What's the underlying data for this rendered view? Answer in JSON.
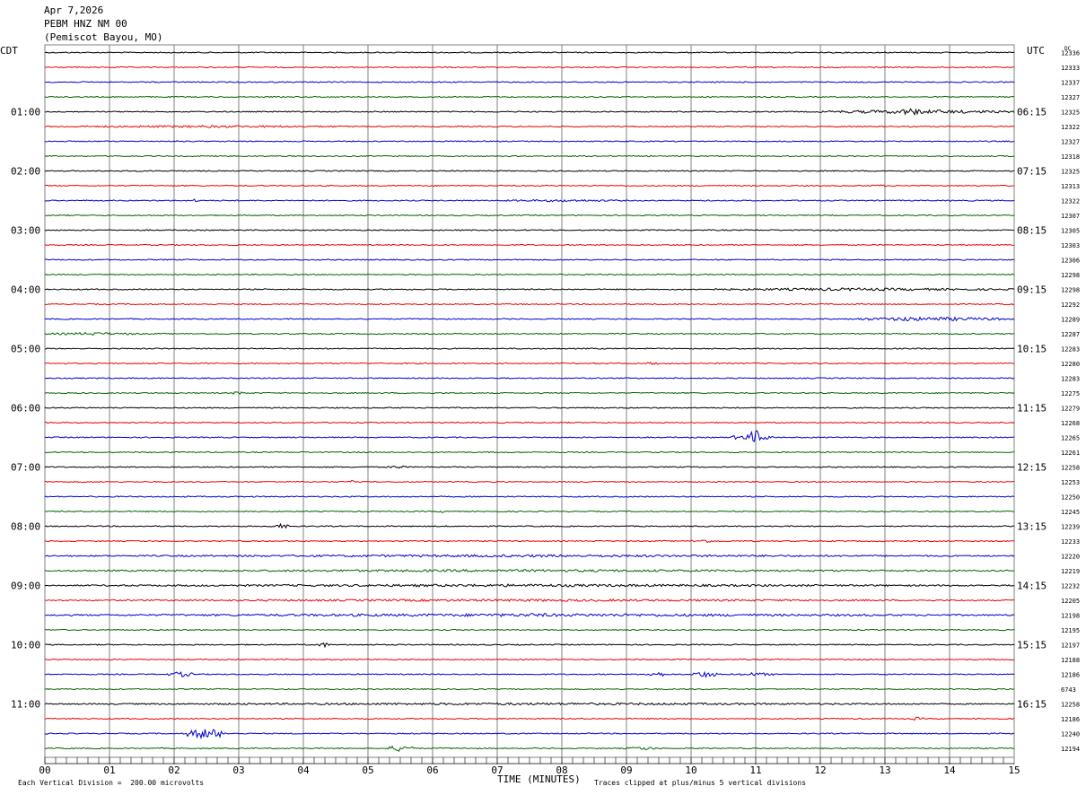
{
  "header": {
    "date": "Apr 7,2026",
    "station": "PEBM HNZ NM 00",
    "location": "(Pemiscot Bayou, MO)"
  },
  "left_axis_label": "CDT",
  "right_axis_label": "UTC",
  "dc_label": "DC",
  "footer": {
    "scale_note": "Each Vertical Division =  200.00 microvolts",
    "xlabel": "TIME (MINUTES)",
    "clip_note": "Traces clipped at plus/minus 5 vertical divisions"
  },
  "colors": {
    "trace_cycle": [
      "#000000",
      "#ee0000",
      "#0000cc",
      "#006600"
    ],
    "grid": "#808080"
  },
  "chart_data": {
    "type": "line",
    "title": "PEBM HNZ NM 00",
    "xlabel": "TIME (MINUTES)",
    "xlim": [
      0,
      15
    ],
    "x_ticks": [
      "00",
      "01",
      "02",
      "03",
      "04",
      "05",
      "06",
      "07",
      "08",
      "09",
      "10",
      "11",
      "12",
      "13",
      "14",
      "15"
    ],
    "left_hour_labels": [
      "01:00",
      "02:00",
      "03:00",
      "04:00",
      "05:00",
      "06:00",
      "07:00",
      "08:00",
      "09:00",
      "10:00",
      "11:00"
    ],
    "right_hour_labels": [
      "06:15",
      "07:15",
      "08:15",
      "09:15",
      "10:15",
      "11:15",
      "12:15",
      "13:15",
      "14:15",
      "15:15",
      "16:15"
    ],
    "dc_offsets": [
      12336,
      12333,
      12337,
      12327,
      12325,
      12322,
      12327,
      12318,
      12325,
      12313,
      12322,
      12307,
      12305,
      12303,
      12306,
      12298,
      12298,
      12292,
      12289,
      12287,
      12283,
      12280,
      12283,
      12275,
      12279,
      12268,
      12265,
      12261,
      12258,
      12253,
      12250,
      12245,
      12239,
      12233,
      12220,
      12219,
      12232,
      12205,
      12198,
      12195,
      12197,
      12188,
      12186,
      6743,
      12258,
      12186,
      12240,
      12194
    ],
    "events": [
      {
        "trace": 4,
        "start_min": 12.0,
        "end_min": 15.0,
        "amp": 2.2
      },
      {
        "trace": 4,
        "start_min": 13.2,
        "end_min": 13.6,
        "amp": 4.0
      },
      {
        "trace": 5,
        "start_min": 0.0,
        "end_min": 5.0,
        "amp": 1.3
      },
      {
        "trace": 9,
        "start_min": 12.8,
        "end_min": 13.0,
        "amp": 1.6
      },
      {
        "trace": 10,
        "start_min": 2.3,
        "end_min": 2.4,
        "amp": 2.5
      },
      {
        "trace": 10,
        "start_min": 7.0,
        "end_min": 9.0,
        "amp": 1.4
      },
      {
        "trace": 16,
        "start_min": 10.0,
        "end_min": 15.0,
        "amp": 1.6
      },
      {
        "trace": 18,
        "start_min": 12.5,
        "end_min": 15.0,
        "amp": 2.2
      },
      {
        "trace": 18,
        "start_min": 13.2,
        "end_min": 13.5,
        "amp": 3.0
      },
      {
        "trace": 19,
        "start_min": 0.0,
        "end_min": 1.5,
        "amp": 1.6
      },
      {
        "trace": 21,
        "start_min": 9.3,
        "end_min": 9.5,
        "amp": 1.8
      },
      {
        "trace": 23,
        "start_min": 2.9,
        "end_min": 3.1,
        "amp": 2.0
      },
      {
        "trace": 26,
        "start_min": 10.6,
        "end_min": 11.3,
        "amp": 3.2
      },
      {
        "trace": 26,
        "start_min": 10.9,
        "end_min": 11.1,
        "amp": 9.0
      },
      {
        "trace": 28,
        "start_min": 5.3,
        "end_min": 5.6,
        "amp": 1.8
      },
      {
        "trace": 29,
        "start_min": 4.7,
        "end_min": 4.8,
        "amp": 2.2
      },
      {
        "trace": 31,
        "start_min": 6.1,
        "end_min": 6.3,
        "amp": 1.8
      },
      {
        "trace": 32,
        "start_min": 3.5,
        "end_min": 3.8,
        "amp": 2.5
      },
      {
        "trace": 33,
        "start_min": 10.0,
        "end_min": 10.4,
        "amp": 2.0
      },
      {
        "trace": 34,
        "start_min": 0.0,
        "end_min": 15.0,
        "amp": 1.4
      },
      {
        "trace": 35,
        "start_min": 0.0,
        "end_min": 15.0,
        "amp": 1.4
      },
      {
        "trace": 36,
        "start_min": 0.0,
        "end_min": 15.0,
        "amp": 1.5
      },
      {
        "trace": 37,
        "start_min": 0.0,
        "end_min": 15.0,
        "amp": 1.3
      },
      {
        "trace": 38,
        "start_min": 0.0,
        "end_min": 15.0,
        "amp": 1.6
      },
      {
        "trace": 38,
        "start_min": 6.8,
        "end_min": 8.4,
        "amp": 2.0
      },
      {
        "trace": 40,
        "start_min": 4.2,
        "end_min": 4.4,
        "amp": 3.0
      },
      {
        "trace": 42,
        "start_min": 1.9,
        "end_min": 2.3,
        "amp": 3.0
      },
      {
        "trace": 42,
        "start_min": 9.3,
        "end_min": 9.6,
        "amp": 3.2
      },
      {
        "trace": 42,
        "start_min": 10.0,
        "end_min": 10.4,
        "amp": 3.5
      },
      {
        "trace": 42,
        "start_min": 10.7,
        "end_min": 11.3,
        "amp": 2.0
      },
      {
        "trace": 44,
        "start_min": 0.0,
        "end_min": 15.0,
        "amp": 1.3
      },
      {
        "trace": 45,
        "start_min": 13.4,
        "end_min": 13.6,
        "amp": 2.0
      },
      {
        "trace": 46,
        "start_min": 2.2,
        "end_min": 2.8,
        "amp": 6.0
      },
      {
        "trace": 47,
        "start_min": 5.3,
        "end_min": 5.7,
        "amp": 3.5
      },
      {
        "trace": 47,
        "start_min": 9.0,
        "end_min": 9.5,
        "amp": 2.0
      }
    ]
  }
}
